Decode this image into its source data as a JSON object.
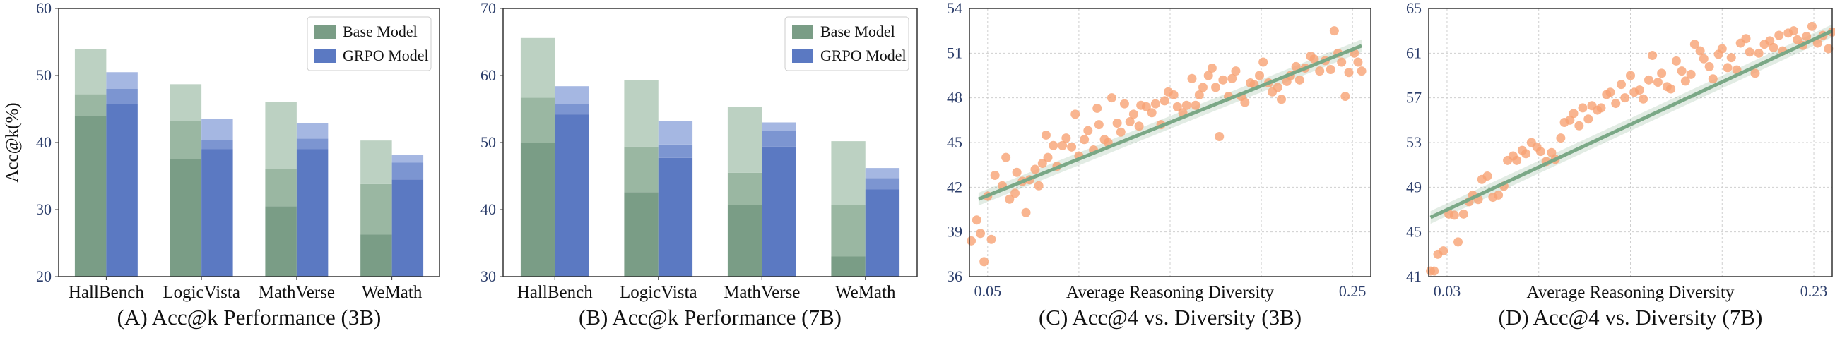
{
  "colors": {
    "base_dark": "#7a9d86",
    "base_mid": "#9ab7a2",
    "base_light": "#bcd1c2",
    "grpo_dark": "#5b79c2",
    "grpo_mid": "#7c95d1",
    "grpo_light": "#a5b7e2",
    "scatter_point": "#f7a274",
    "trend_line": "#7aa886",
    "grid": "#cfcfcf"
  },
  "chart_data": [
    {
      "id": "A",
      "type": "bar",
      "title": "(A) Acc@k Performance (3B)",
      "ylabel": "Acc@k(%)",
      "ylim": [
        20,
        60
      ],
      "yticks": [
        20,
        30,
        40,
        50,
        60
      ],
      "categories": [
        "HallBench",
        "LogicVista",
        "MathVerse",
        "WeMath"
      ],
      "legend": [
        "Base Model",
        "GRPO Model"
      ],
      "legend_position": "top-right",
      "series": [
        {
          "name": "Base Model",
          "values": [
            [
              44.0,
              47.2,
              54.0
            ],
            [
              37.5,
              43.2,
              48.7
            ],
            [
              30.5,
              36.0,
              46.0
            ],
            [
              26.3,
              33.8,
              40.3
            ]
          ]
        },
        {
          "name": "GRPO Model",
          "values": [
            [
              45.7,
              48.0,
              50.5
            ],
            [
              39.0,
              40.4,
              43.5
            ],
            [
              39.0,
              40.6,
              42.9
            ],
            [
              34.5,
              37.0,
              38.2
            ]
          ]
        }
      ]
    },
    {
      "id": "B",
      "type": "bar",
      "title": "(B) Acc@k Performance (7B)",
      "ylabel": "",
      "ylim": [
        30,
        70
      ],
      "yticks": [
        30,
        40,
        50,
        60,
        70
      ],
      "categories": [
        "HallBench",
        "LogicVista",
        "MathVerse",
        "WeMath"
      ],
      "legend": [
        "Base Model",
        "GRPO Model"
      ],
      "legend_position": "top-right",
      "series": [
        {
          "name": "Base Model",
          "values": [
            [
              50.0,
              56.7,
              65.6
            ],
            [
              42.6,
              49.4,
              59.3
            ],
            [
              40.7,
              45.5,
              55.3
            ],
            [
              33.0,
              40.7,
              50.2
            ]
          ]
        },
        {
          "name": "GRPO Model",
          "values": [
            [
              54.2,
              55.7,
              58.4
            ],
            [
              47.7,
              49.7,
              53.2
            ],
            [
              49.4,
              51.7,
              53.0
            ],
            [
              43.0,
              44.7,
              46.2
            ]
          ]
        }
      ]
    },
    {
      "id": "C",
      "type": "scatter",
      "title": "(C) Acc@4 vs. Diversity (3B)",
      "xlabel": "Average Reasoning Diversity",
      "xlim": [
        0.04,
        0.26
      ],
      "ylim": [
        36,
        54
      ],
      "xticks": [
        0.05,
        0.25
      ],
      "xtick_labels": [
        "0.05",
        "0.25"
      ],
      "yticks": [
        36,
        39,
        42,
        45,
        48,
        51,
        54
      ],
      "trend": {
        "x": [
          0.045,
          0.255
        ],
        "y": [
          41.2,
          51.5
        ]
      },
      "points": [
        [
          0.041,
          38.4
        ],
        [
          0.044,
          39.8
        ],
        [
          0.048,
          37.0
        ],
        [
          0.046,
          38.9
        ],
        [
          0.052,
          38.5
        ],
        [
          0.05,
          41.4
        ],
        [
          0.054,
          42.8
        ],
        [
          0.058,
          42.1
        ],
        [
          0.06,
          44.0
        ],
        [
          0.062,
          41.2
        ],
        [
          0.065,
          41.6
        ],
        [
          0.066,
          43.0
        ],
        [
          0.069,
          42.4
        ],
        [
          0.071,
          40.3
        ],
        [
          0.073,
          42.5
        ],
        [
          0.076,
          43.2
        ],
        [
          0.078,
          42.1
        ],
        [
          0.08,
          43.6
        ],
        [
          0.082,
          45.5
        ],
        [
          0.083,
          44.0
        ],
        [
          0.086,
          44.8
        ],
        [
          0.088,
          43.4
        ],
        [
          0.091,
          44.8
        ],
        [
          0.093,
          45.3
        ],
        [
          0.096,
          44.7
        ],
        [
          0.098,
          46.9
        ],
        [
          0.1,
          44.1
        ],
        [
          0.103,
          45.2
        ],
        [
          0.105,
          45.8
        ],
        [
          0.108,
          44.5
        ],
        [
          0.11,
          47.3
        ],
        [
          0.111,
          46.2
        ],
        [
          0.114,
          45.2
        ],
        [
          0.116,
          45.0
        ],
        [
          0.118,
          48.0
        ],
        [
          0.121,
          46.3
        ],
        [
          0.123,
          45.7
        ],
        [
          0.125,
          47.6
        ],
        [
          0.128,
          46.4
        ],
        [
          0.13,
          46.9
        ],
        [
          0.133,
          46.1
        ],
        [
          0.134,
          47.5
        ],
        [
          0.137,
          47.4
        ],
        [
          0.14,
          47.0
        ],
        [
          0.142,
          47.6
        ],
        [
          0.145,
          46.2
        ],
        [
          0.147,
          47.8
        ],
        [
          0.149,
          48.4
        ],
        [
          0.152,
          48.2
        ],
        [
          0.154,
          47.4
        ],
        [
          0.157,
          47.0
        ],
        [
          0.159,
          47.5
        ],
        [
          0.162,
          49.3
        ],
        [
          0.164,
          47.5
        ],
        [
          0.166,
          48.2
        ],
        [
          0.168,
          48.7
        ],
        [
          0.171,
          49.5
        ],
        [
          0.173,
          50.0
        ],
        [
          0.175,
          48.7
        ],
        [
          0.177,
          45.4
        ],
        [
          0.179,
          49.2
        ],
        [
          0.182,
          48.1
        ],
        [
          0.184,
          49.3
        ],
        [
          0.186,
          49.8
        ],
        [
          0.189,
          48.1
        ],
        [
          0.191,
          47.7
        ],
        [
          0.194,
          49.0
        ],
        [
          0.196,
          48.9
        ],
        [
          0.199,
          49.5
        ],
        [
          0.201,
          50.4
        ],
        [
          0.204,
          49.0
        ],
        [
          0.206,
          48.4
        ],
        [
          0.209,
          48.7
        ],
        [
          0.211,
          47.9
        ],
        [
          0.214,
          49.1
        ],
        [
          0.216,
          49.5
        ],
        [
          0.219,
          50.1
        ],
        [
          0.221,
          49.2
        ],
        [
          0.224,
          50.0
        ],
        [
          0.227,
          50.8
        ],
        [
          0.229,
          50.6
        ],
        [
          0.232,
          49.8
        ],
        [
          0.235,
          50.5
        ],
        [
          0.238,
          49.9
        ],
        [
          0.24,
          52.5
        ],
        [
          0.242,
          51.0
        ],
        [
          0.244,
          50.4
        ],
        [
          0.246,
          48.1
        ],
        [
          0.248,
          49.7
        ],
        [
          0.251,
          51.0
        ],
        [
          0.253,
          50.4
        ],
        [
          0.255,
          49.8
        ]
      ]
    },
    {
      "id": "D",
      "type": "scatter",
      "title": "(D) Acc@4 vs. Diversity (7B)",
      "xlabel": "Average Reasoning Diversity",
      "xlim": [
        0.02,
        0.24
      ],
      "ylim": [
        41,
        65
      ],
      "xticks": [
        0.03,
        0.23
      ],
      "xtick_labels": [
        "0.03",
        "0.23"
      ],
      "yticks": [
        41,
        45,
        49,
        53,
        57,
        61,
        65
      ],
      "trend": {
        "x": [
          0.021,
          0.24
        ],
        "y": [
          46.3,
          63.0
        ]
      },
      "points": [
        [
          0.021,
          41.5
        ],
        [
          0.023,
          41.5
        ],
        [
          0.025,
          43.0
        ],
        [
          0.028,
          43.3
        ],
        [
          0.031,
          46.6
        ],
        [
          0.034,
          46.5
        ],
        [
          0.036,
          44.1
        ],
        [
          0.039,
          46.6
        ],
        [
          0.042,
          47.7
        ],
        [
          0.044,
          48.3
        ],
        [
          0.047,
          47.9
        ],
        [
          0.049,
          49.7
        ],
        [
          0.052,
          50.0
        ],
        [
          0.055,
          48.1
        ],
        [
          0.058,
          48.3
        ],
        [
          0.061,
          49.1
        ],
        [
          0.063,
          51.4
        ],
        [
          0.066,
          51.8
        ],
        [
          0.068,
          51.4
        ],
        [
          0.071,
          52.3
        ],
        [
          0.073,
          52.0
        ],
        [
          0.076,
          53.0
        ],
        [
          0.079,
          52.6
        ],
        [
          0.081,
          52.2
        ],
        [
          0.084,
          51.3
        ],
        [
          0.087,
          52.1
        ],
        [
          0.089,
          51.5
        ],
        [
          0.092,
          53.4
        ],
        [
          0.094,
          54.8
        ],
        [
          0.097,
          55.0
        ],
        [
          0.099,
          55.6
        ],
        [
          0.102,
          54.5
        ],
        [
          0.104,
          56.1
        ],
        [
          0.107,
          55.1
        ],
        [
          0.109,
          56.3
        ],
        [
          0.112,
          55.9
        ],
        [
          0.114,
          56.1
        ],
        [
          0.117,
          57.3
        ],
        [
          0.119,
          57.5
        ],
        [
          0.122,
          56.5
        ],
        [
          0.125,
          58.2
        ],
        [
          0.127,
          57.0
        ],
        [
          0.13,
          59.0
        ],
        [
          0.132,
          57.5
        ],
        [
          0.135,
          57.7
        ],
        [
          0.137,
          56.9
        ],
        [
          0.14,
          58.6
        ],
        [
          0.142,
          60.8
        ],
        [
          0.145,
          58.4
        ],
        [
          0.147,
          59.2
        ],
        [
          0.15,
          58.0
        ],
        [
          0.152,
          57.8
        ],
        [
          0.155,
          60.3
        ],
        [
          0.158,
          59.4
        ],
        [
          0.16,
          58.5
        ],
        [
          0.163,
          59.1
        ],
        [
          0.165,
          61.8
        ],
        [
          0.168,
          61.2
        ],
        [
          0.17,
          60.5
        ],
        [
          0.173,
          59.8
        ],
        [
          0.175,
          58.7
        ],
        [
          0.178,
          60.9
        ],
        [
          0.18,
          61.4
        ],
        [
          0.183,
          59.7
        ],
        [
          0.185,
          60.6
        ],
        [
          0.188,
          59.5
        ],
        [
          0.19,
          61.9
        ],
        [
          0.193,
          62.3
        ],
        [
          0.195,
          61.1
        ],
        [
          0.198,
          59.2
        ],
        [
          0.2,
          61.0
        ],
        [
          0.203,
          61.8
        ],
        [
          0.206,
          62.1
        ],
        [
          0.208,
          61.5
        ],
        [
          0.211,
          62.6
        ],
        [
          0.213,
          61.2
        ],
        [
          0.216,
          62.8
        ],
        [
          0.219,
          63.0
        ],
        [
          0.221,
          62.2
        ],
        [
          0.224,
          61.7
        ],
        [
          0.226,
          62.5
        ],
        [
          0.229,
          63.4
        ],
        [
          0.232,
          61.9
        ],
        [
          0.235,
          62.6
        ],
        [
          0.238,
          61.4
        ],
        [
          0.24,
          62.9
        ]
      ]
    }
  ]
}
